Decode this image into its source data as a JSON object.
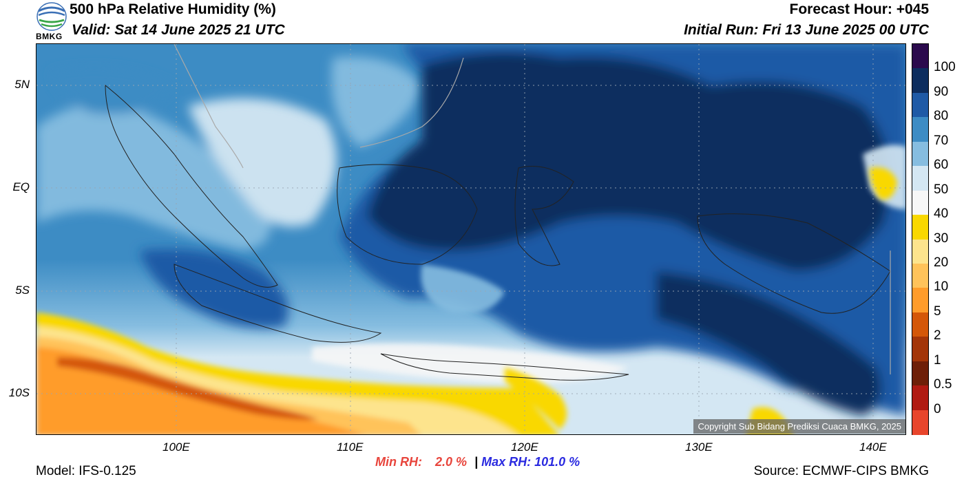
{
  "header": {
    "title": "500 hPa Relative Humidity (%)",
    "valid": "Valid: Sat 14 June 2025 21 UTC",
    "forecast_hour": "Forecast Hour: +045",
    "initial_run": "Initial Run: Fri 13 June 2025 00 UTC",
    "logo_text": "BMKG"
  },
  "map": {
    "lat_labels": [
      "5N",
      "EQ",
      "5S",
      "10S"
    ],
    "lon_labels": [
      "100E",
      "110E",
      "120E",
      "130E",
      "140E"
    ],
    "copyright": "Copyright Sub Bidang Prediksi Cuaca BMKG, 2025"
  },
  "colorbar": {
    "labels": [
      "100",
      "90",
      "80",
      "70",
      "60",
      "50",
      "40",
      "30",
      "20",
      "10",
      "5",
      "2",
      "1",
      "0.5",
      "0"
    ],
    "colors": [
      "#2b0a4d",
      "#0d2d5e",
      "#1f5aa6",
      "#3d8cc4",
      "#86bde0",
      "#d4e7f3",
      "#f7f7f7",
      "#f9d800",
      "#fde48d",
      "#ffc35a",
      "#ff9c2a",
      "#d45708",
      "#a33508",
      "#6e1f08",
      "#b01a12",
      "#e8452c"
    ]
  },
  "stats": {
    "min_label": "Min RH:",
    "min_value": "2.0 %",
    "separator": "|",
    "max_label": "Max RH:",
    "max_value": "101.0 %"
  },
  "footer": {
    "model": "Model: IFS-0.125",
    "source": "Source: ECMWF-CIPS BMKG"
  }
}
